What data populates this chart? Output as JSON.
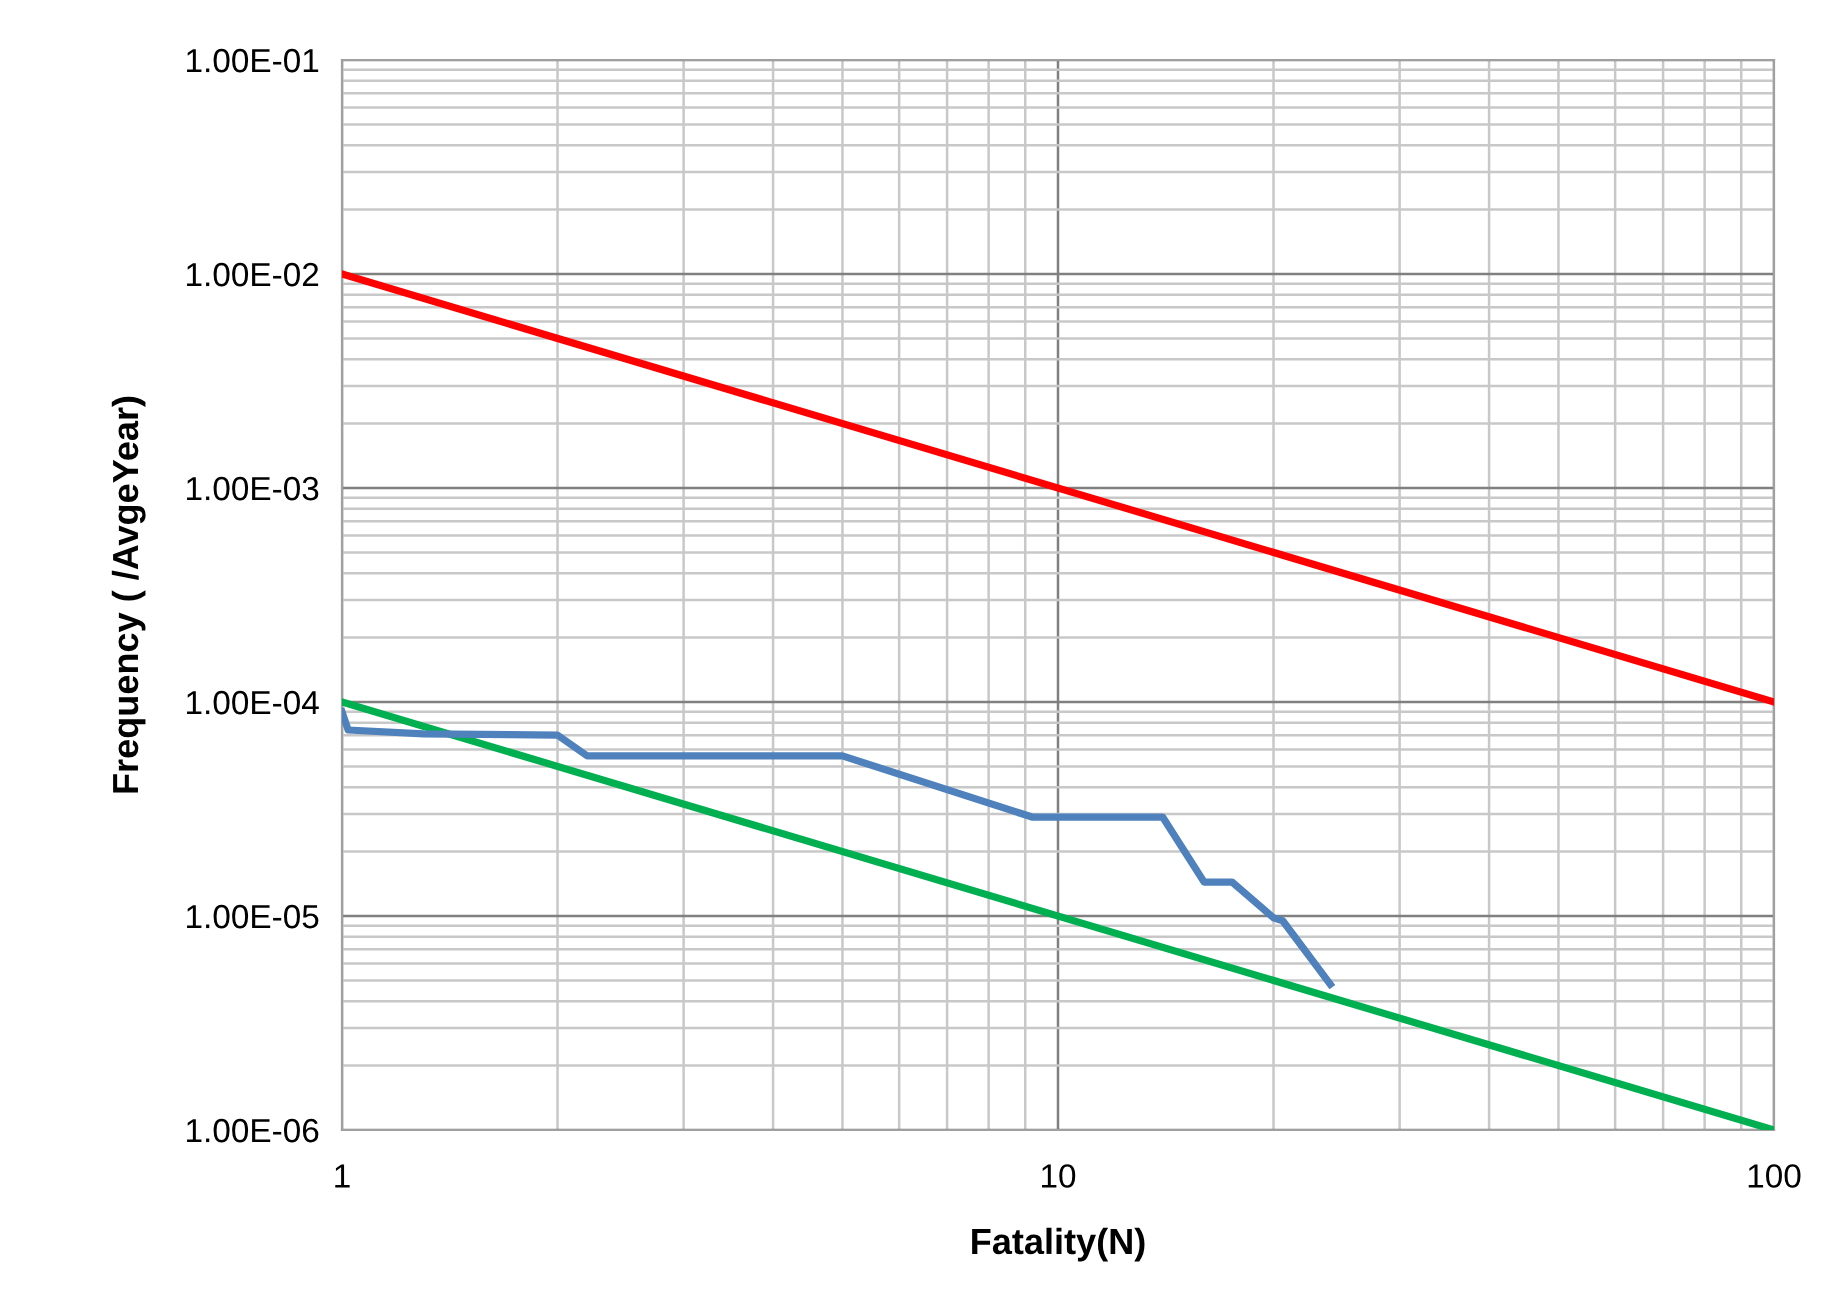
{
  "chart_data": {
    "type": "line",
    "xlabel": "Fatality(N)",
    "ylabel": "Frequency ( /AvgeYear)",
    "log": "xy",
    "grid": true,
    "marker": "none",
    "line_style": "solid",
    "xlim": [
      1,
      100
    ],
    "xticks": [
      1,
      10,
      100
    ],
    "ylim": [
      1e-06,
      0.1
    ],
    "yticks": [
      {
        "value": 1e-06,
        "label": "1.00E-06"
      },
      {
        "value": 1e-05,
        "label": "1.00E-05"
      },
      {
        "value": 0.0001,
        "label": "1.00E-04"
      },
      {
        "value": 0.001,
        "label": "1.00E-03"
      },
      {
        "value": 0.01,
        "label": "1.00E-02"
      },
      {
        "value": 0.1,
        "label": "1.00E-01"
      }
    ],
    "series": [
      {
        "color": "#ff0000",
        "x": [
          1,
          100
        ],
        "values": [
          0.01,
          0.0001
        ]
      },
      {
        "color": "#00b050",
        "x": [
          1,
          100
        ],
        "values": [
          0.0001,
          1e-06
        ]
      },
      {
        "color": "#4f81bd",
        "x": [
          1,
          1.02,
          1.3,
          2.0,
          2.2,
          5.0,
          9.2,
          14,
          16,
          17.5,
          20,
          20.6,
          24
        ],
        "values": [
          9e-05,
          7.4e-05,
          7.1e-05,
          7e-05,
          5.6e-05,
          5.6e-05,
          2.9e-05,
          2.9e-05,
          1.44e-05,
          1.44e-05,
          9.8e-06,
          9.5e-06,
          4.8e-06
        ]
      }
    ]
  }
}
